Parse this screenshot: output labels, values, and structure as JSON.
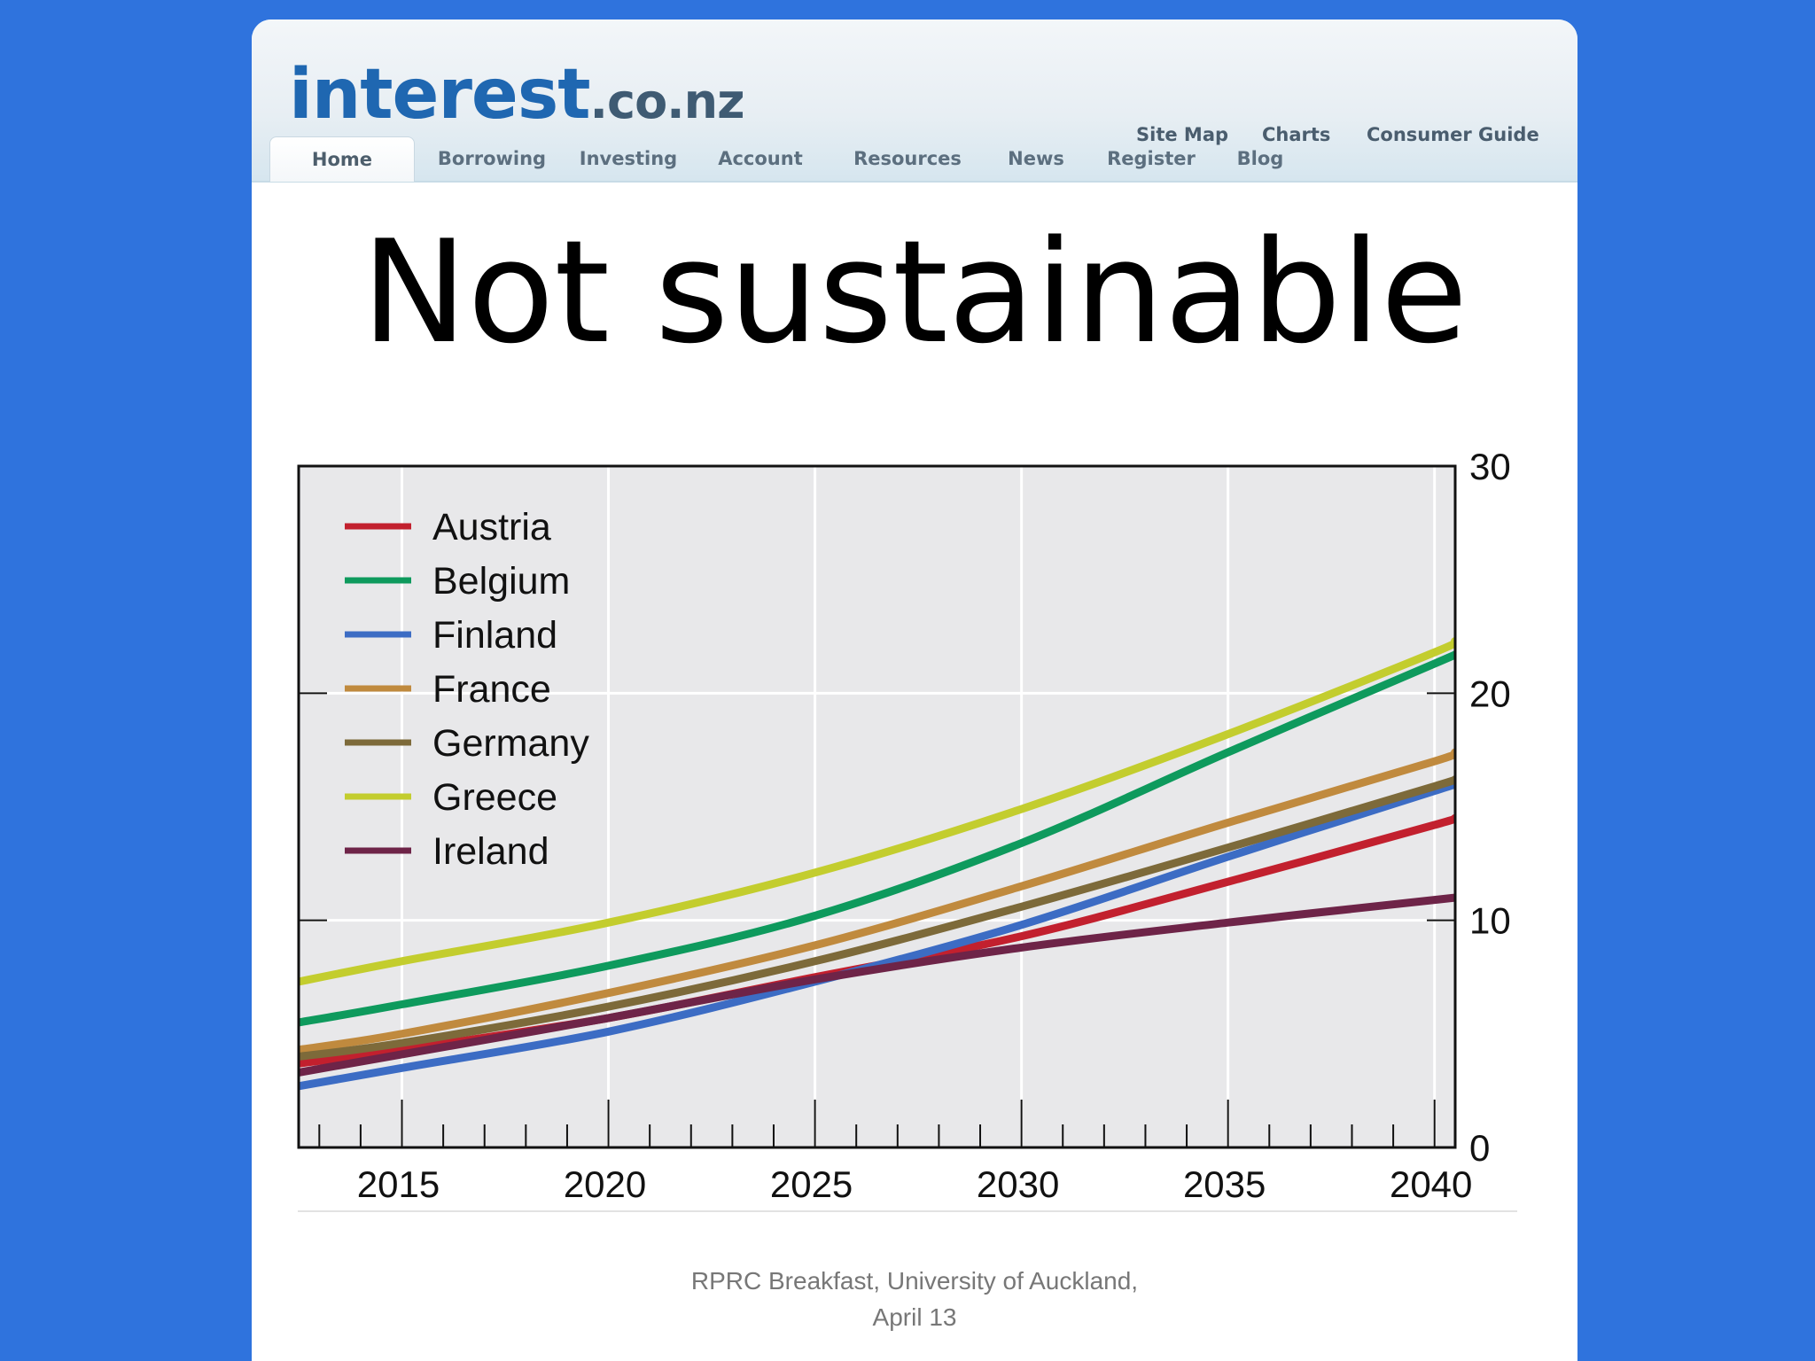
{
  "site": {
    "logo_main": "interest",
    "logo_tld": ".co.nz",
    "top_links": [
      "Site Map",
      "Charts",
      "Consumer Guide"
    ],
    "nav": [
      "Home",
      "Borrowing",
      "Investing",
      "Account",
      "Resources",
      "News",
      "Register",
      "Blog"
    ],
    "active_nav": "Home"
  },
  "slide": {
    "title": "Not sustainable",
    "footer_line1": "RPRC Breakfast, University of Auckland,",
    "footer_line2": "April 13"
  },
  "chart_data": {
    "type": "line",
    "title": "",
    "xlabel": "",
    "ylabel": "",
    "xlim": [
      2012.5,
      2040.5
    ],
    "ylim": [
      0,
      30
    ],
    "x_ticks": [
      2015,
      2020,
      2025,
      2030,
      2035,
      2040
    ],
    "y_ticks": [
      0,
      10,
      20,
      30
    ],
    "y_axis_side": "right",
    "grid": true,
    "legend_position": "top-left",
    "x": [
      2012.5,
      2015,
      2020,
      2025,
      2030,
      2035,
      2040,
      2040.5
    ],
    "series": [
      {
        "name": "Austria",
        "color": "#c2202e",
        "values": [
          3.7,
          4.3,
          5.7,
          7.5,
          9.3,
          11.7,
          14.2,
          14.5
        ]
      },
      {
        "name": "Belgium",
        "color": "#0e9a5d",
        "values": [
          5.5,
          6.3,
          8.0,
          10.2,
          13.4,
          17.4,
          21.3,
          21.7
        ]
      },
      {
        "name": "Finland",
        "color": "#3c6cc4",
        "values": [
          2.7,
          3.5,
          5.1,
          7.3,
          9.8,
          12.8,
          15.7,
          16.0
        ]
      },
      {
        "name": "France",
        "color": "#c08a3e",
        "values": [
          4.3,
          5.0,
          6.8,
          8.9,
          11.5,
          14.3,
          17.0,
          17.4
        ]
      },
      {
        "name": "Germany",
        "color": "#7d6a3a",
        "values": [
          4.0,
          4.6,
          6.2,
          8.2,
          10.6,
          13.2,
          15.9,
          16.2
        ]
      },
      {
        "name": "Greece",
        "color": "#c3cd2e",
        "values": [
          7.3,
          8.2,
          9.9,
          12.1,
          14.9,
          18.2,
          21.8,
          22.3
        ]
      },
      {
        "name": "Ireland",
        "color": "#6e2448",
        "values": [
          3.3,
          4.1,
          5.7,
          7.4,
          8.8,
          9.9,
          10.9,
          11.0
        ]
      }
    ]
  }
}
